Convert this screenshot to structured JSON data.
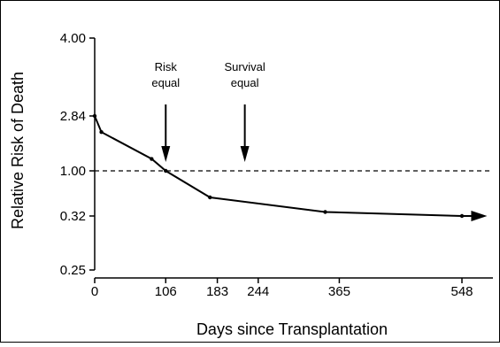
{
  "chart_data": {
    "type": "line",
    "xlabel": "Days since Transplantation",
    "ylabel": "Relative Risk of Death",
    "y_scale": "categorical-log-like",
    "x_ticks": [
      0,
      106,
      183,
      244,
      365,
      548
    ],
    "y_ticks": [
      "4.00",
      "2.84",
      "1.00",
      "0.32",
      "0.25"
    ],
    "y_tick_values": [
      4.0,
      2.84,
      1.0,
      0.32,
      0.25
    ],
    "reference_line": {
      "y": 1.0,
      "style": "dashed"
    },
    "grid": false,
    "series": [
      {
        "x": [
          0,
          10,
          85,
          106,
          172,
          344,
          548,
          575
        ],
        "y": [
          2.84,
          2.3,
          1.4,
          1.0,
          0.6,
          0.38,
          0.32,
          0.32
        ],
        "markers": true,
        "arrow_end": true
      }
    ],
    "annotations": [
      {
        "text_lines": [
          "Risk",
          "equal"
        ],
        "x": 106
      },
      {
        "text_lines": [
          "Survival",
          "equal"
        ],
        "x": 224
      }
    ]
  }
}
